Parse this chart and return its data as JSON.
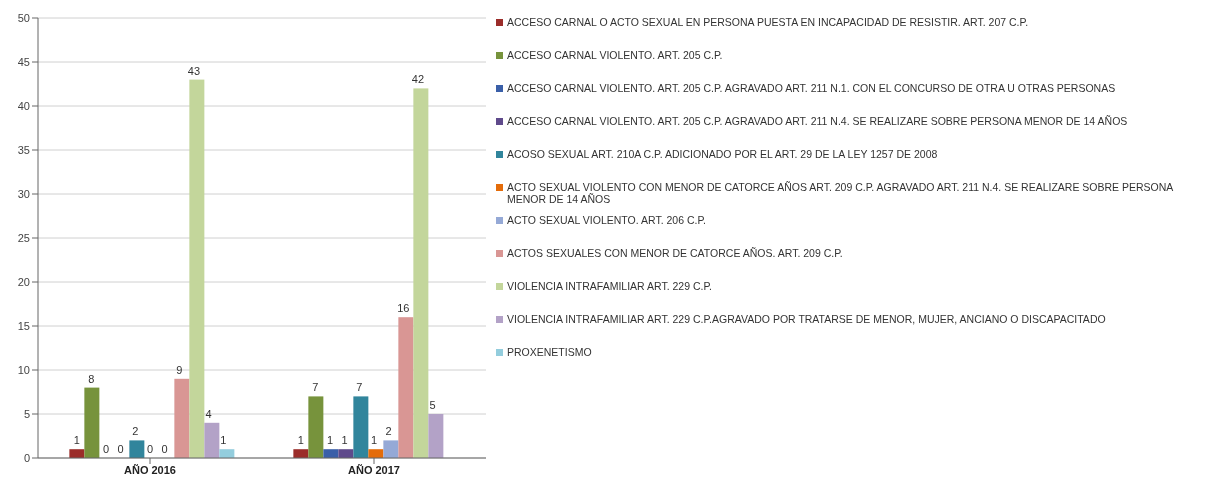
{
  "chart_data": {
    "type": "bar",
    "categories": [
      "AÑO 2016",
      "AÑO 2017"
    ],
    "series": [
      {
        "name": "ACCESO CARNAL O ACTO SEXUAL EN PERSONA PUESTA EN INCAPACIDAD DE RESISTIR. ART. 207 C.P.",
        "color": "#9b2d2a",
        "values": [
          1,
          1
        ]
      },
      {
        "name": "ACCESO CARNAL VIOLENTO. ART. 205 C.P.",
        "color": "#77933c",
        "values": [
          8,
          7
        ]
      },
      {
        "name": "ACCESO CARNAL VIOLENTO. ART. 205 C.P. AGRAVADO ART. 211 N.1. CON EL CONCURSO DE OTRA U OTRAS PERSONAS",
        "color": "#3a5fa8",
        "values": [
          0,
          1
        ]
      },
      {
        "name": "ACCESO CARNAL VIOLENTO. ART. 205 C.P. AGRAVADO ART. 211 N.4. SE REALIZARE SOBRE PERSONA MENOR DE 14 AÑOS",
        "color": "#5f4a8b",
        "values": [
          0,
          1
        ]
      },
      {
        "name": "ACOSO SEXUAL ART. 210A C.P.  ADICIONADO POR EL ART. 29 DE LA LEY 1257 DE 2008",
        "color": "#31859c",
        "values": [
          2,
          7
        ]
      },
      {
        "name": "ACTO SEXUAL VIOLENTO CON MENOR DE CATORCE AÑOS ART. 209 C.P. AGRAVADO ART. 211 N.4. SE REALIZARE SOBRE PERSONA MENOR DE 14 AÑOS",
        "color": "#e46c0a",
        "values": [
          0,
          1
        ]
      },
      {
        "name": "ACTO SEXUAL VIOLENTO. ART. 206 C.P.",
        "color": "#95a9d6",
        "values": [
          0,
          2
        ]
      },
      {
        "name": "ACTOS SEXUALES CON MENOR DE CATORCE AÑOS. ART. 209 C.P.",
        "color": "#d99694",
        "values": [
          9,
          16
        ]
      },
      {
        "name": "VIOLENCIA INTRAFAMILIAR ART. 229 C.P.",
        "color": "#c3d69b",
        "values": [
          43,
          42
        ]
      },
      {
        "name": "VIOLENCIA INTRAFAMILIAR ART. 229 C.P.AGRAVADO POR TRATARSE DE MENOR, MUJER, ANCIANO O DISCAPACITADO",
        "color": "#b3a2c7",
        "values": [
          4,
          5
        ]
      },
      {
        "name": "PROXENETISMO",
        "color": "#93cddd",
        "values": [
          1,
          null
        ]
      }
    ],
    "ylim": [
      0,
      50
    ],
    "yticks": [
      0,
      5,
      10,
      15,
      20,
      25,
      30,
      35,
      40,
      45,
      50
    ],
    "grid": "y",
    "legend": "right",
    "data_labels": true
  }
}
